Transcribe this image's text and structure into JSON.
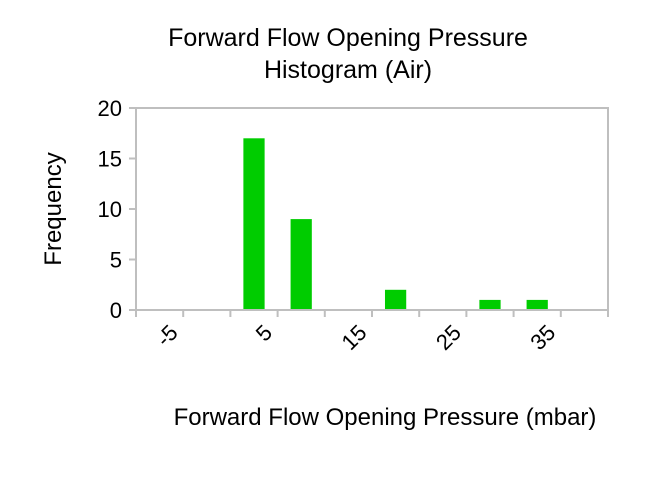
{
  "chart_data": {
    "type": "bar",
    "title_lines": [
      "Forward Flow Opening Pressure",
      "Histogram (Air)"
    ],
    "xlabel": "Forward Flow Opening Pressure (mbar)",
    "ylabel": "Frequency",
    "x_tick_labels": [
      "-5",
      "5",
      "15",
      "25",
      "35"
    ],
    "y_tick_labels": [
      "0",
      "5",
      "10",
      "15",
      "20"
    ],
    "ylim": [
      0,
      20
    ],
    "xlim": [
      -10,
      40
    ],
    "bin_width": 5,
    "bins": [
      {
        "x_start": -10,
        "value": 0
      },
      {
        "x_start": -5,
        "value": 0
      },
      {
        "x_start": 0,
        "value": 17
      },
      {
        "x_start": 5,
        "value": 9
      },
      {
        "x_start": 10,
        "value": 0
      },
      {
        "x_start": 15,
        "value": 2
      },
      {
        "x_start": 20,
        "value": 0
      },
      {
        "x_start": 25,
        "value": 1
      },
      {
        "x_start": 30,
        "value": 1
      },
      {
        "x_start": 35,
        "value": 0
      }
    ],
    "bar_color": "#00cc00",
    "grid": false,
    "legend": "none"
  }
}
